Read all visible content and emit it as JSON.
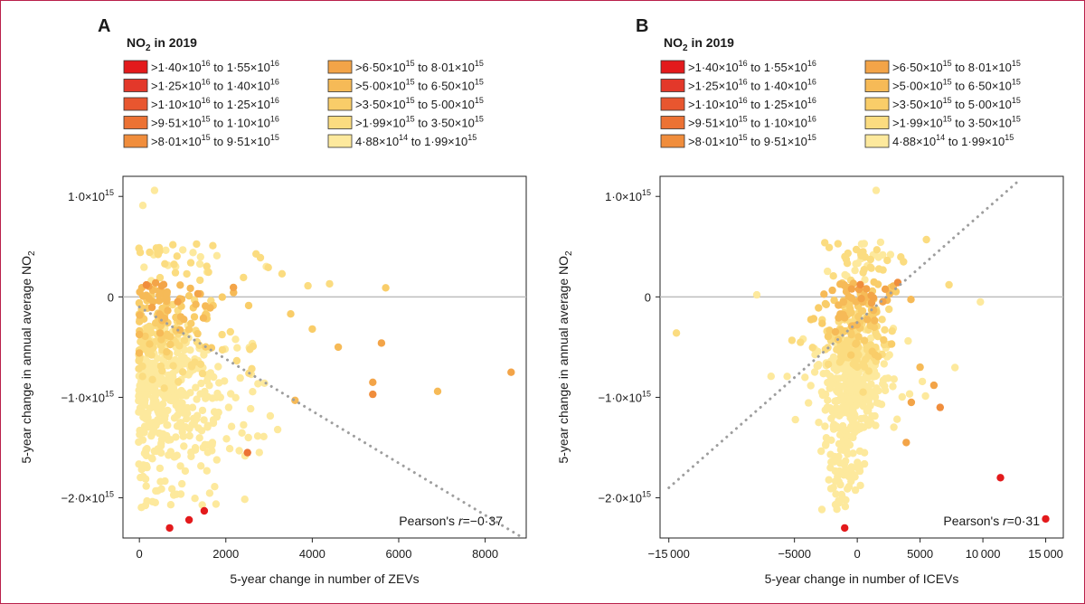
{
  "legend_title": "NO₂ in 2019",
  "legend_title_main": "NO",
  "legend_title_sub": "2",
  "legend_title_rest": " in 2019",
  "legend": [
    {
      "color": "#e31a1c",
      "label": ">1·40×10¹⁶ to 1·55×10¹⁶",
      "label_plain": ">1·40×10^16 to 1·55×10^16"
    },
    {
      "color": "#e3382a",
      "label": ">1·25×10¹⁶ to 1·40×10¹⁶"
    },
    {
      "color": "#e8562f",
      "label": ">1·10×10¹⁶ to 1·25×10¹⁶"
    },
    {
      "color": "#ec7234",
      "label": ">9·51×10¹⁵ to 1·10×10¹⁶"
    },
    {
      "color": "#f08d3c",
      "label": ">8·01×10¹⁵ to 9·51×10¹⁵"
    },
    {
      "color": "#f3a448",
      "label": ">6·50×10¹⁵ to 8·01×10¹⁵"
    },
    {
      "color": "#f6ba57",
      "label": ">5·00×10¹⁵ to 6·50×10¹⁵"
    },
    {
      "color": "#f9cd69",
      "label": ">3·50×10¹⁵ to 5·00×10¹⁵"
    },
    {
      "color": "#fbdc80",
      "label": ">1·99×10¹⁵ to 3·50×10¹⁵"
    },
    {
      "color": "#fde99d",
      "label": "4·88×10¹⁴ to 1·99×10¹⁵"
    }
  ],
  "chart_data": [
    {
      "panel": "A",
      "type": "scatter",
      "xlabel": "5-year change in number of ZEVs",
      "ylabel": "5-year change in annual average NO₂",
      "ylabel_main": "5-year change in annual average NO",
      "ylabel_sub": "2",
      "xlim": [
        -380,
        8950
      ],
      "ylim": [
        -2400000000000000.0,
        1200000000000000.0
      ],
      "xticks": [
        0,
        2000,
        4000,
        6000,
        8000
      ],
      "xtick_labels": [
        "0",
        "2000",
        "4000",
        "6000",
        "8000"
      ],
      "yticks": [
        1000000000000000.0,
        0,
        -1000000000000000.0,
        -2000000000000000.0
      ],
      "ytick_labels": [
        {
          "mant": "1·0×10",
          "exp": "15"
        },
        {
          "mant": "0",
          "exp": ""
        },
        {
          "mant": "−1·0×10",
          "exp": "15"
        },
        {
          "mant": "−2·0×10",
          "exp": "15"
        }
      ],
      "zero_line": true,
      "trend": {
        "x0": 0,
        "y0": -100000000000000.0,
        "x1": 8800,
        "y1": -2380000000000000.0
      },
      "annotation": "Pearson's r=−0·37",
      "annotation_pre": "Pearson's ",
      "annotation_var": "r",
      "annotation_val": "=−0·37",
      "cluster": {
        "n": 620,
        "seed": 7,
        "xmax_typical": 2600
      },
      "points": [
        {
          "x": 80,
          "y": 910000000000000.0,
          "c": 9
        },
        {
          "x": 350,
          "y": 1060000000000000.0,
          "c": 9
        },
        {
          "x": 1700,
          "y": 510000000000000.0,
          "c": 8
        },
        {
          "x": 2800,
          "y": 390000000000000.0,
          "c": 8
        },
        {
          "x": 3300,
          "y": 230000000000000.0,
          "c": 8
        },
        {
          "x": 3900,
          "y": 110000000000000.0,
          "c": 8
        },
        {
          "x": 4400,
          "y": 130000000000000.0,
          "c": 8
        },
        {
          "x": 5700,
          "y": 90000000000000.0,
          "c": 7
        },
        {
          "x": 3500,
          "y": -170000000000000.0,
          "c": 7
        },
        {
          "x": 4000,
          "y": -320000000000000.0,
          "c": 7
        },
        {
          "x": 4600,
          "y": -500000000000000.0,
          "c": 6
        },
        {
          "x": 5600,
          "y": -460000000000000.0,
          "c": 5
        },
        {
          "x": 3600,
          "y": -1030000000000000.0,
          "c": 6
        },
        {
          "x": 5400,
          "y": -850000000000000.0,
          "c": 5
        },
        {
          "x": 5400,
          "y": -970000000000000.0,
          "c": 4
        },
        {
          "x": 6900,
          "y": -940000000000000.0,
          "c": 6
        },
        {
          "x": 8600,
          "y": -750000000000000.0,
          "c": 5
        },
        {
          "x": 700,
          "y": -2300000000000000.0,
          "c": 0
        },
        {
          "x": 1150,
          "y": -2220000000000000.0,
          "c": 0
        },
        {
          "x": 1500,
          "y": -2130000000000000.0,
          "c": 0
        },
        {
          "x": 2500,
          "y": -1550000000000000.0,
          "c": 3
        }
      ]
    },
    {
      "panel": "B",
      "type": "scatter",
      "xlabel": "5-year change in number of ICEVs",
      "ylabel": "5-year change in annual average NO₂",
      "ylabel_main": "5-year change in annual average NO",
      "ylabel_sub": "2",
      "xlim": [
        -15700,
        16400
      ],
      "ylim": [
        -2400000000000000.0,
        1200000000000000.0
      ],
      "xticks": [
        -15000,
        -5000,
        0,
        5000,
        10000,
        15000
      ],
      "xtick_labels": [
        "−15 000",
        "−5000",
        "0",
        "5000",
        "10 000",
        "15 000"
      ],
      "yticks": [
        1000000000000000.0,
        0,
        -1000000000000000.0,
        -2000000000000000.0
      ],
      "ytick_labels": [
        {
          "mant": "1·0×10",
          "exp": "15"
        },
        {
          "mant": "0",
          "exp": ""
        },
        {
          "mant": "−1·0×10",
          "exp": "15"
        },
        {
          "mant": "−2·0×10",
          "exp": "15"
        }
      ],
      "zero_line": true,
      "trend": {
        "x0": -15000,
        "y0": -1900000000000000.0,
        "x1": 12800,
        "y1": 1150000000000000.0
      },
      "annotation": "Pearson's r=0·31",
      "annotation_pre": "Pearson's ",
      "annotation_var": "r",
      "annotation_val": "=0·31",
      "cluster": {
        "n": 620,
        "seed": 11
      },
      "points": [
        {
          "x": -14400,
          "y": -360000000000000.0,
          "c": 8
        },
        {
          "x": -8000,
          "y": 20000000000000.0,
          "c": 9
        },
        {
          "x": 1500,
          "y": 1060000000000000.0,
          "c": 9
        },
        {
          "x": 5500,
          "y": 570000000000000.0,
          "c": 8
        },
        {
          "x": 7300,
          "y": 120000000000000.0,
          "c": 8
        },
        {
          "x": 9800,
          "y": -50000000000000.0,
          "c": 9
        },
        {
          "x": 5000,
          "y": -700000000000000.0,
          "c": 6
        },
        {
          "x": 6100,
          "y": -880000000000000.0,
          "c": 5
        },
        {
          "x": 4300,
          "y": -1050000000000000.0,
          "c": 5
        },
        {
          "x": 6600,
          "y": -1100000000000000.0,
          "c": 4
        },
        {
          "x": 3900,
          "y": -1450000000000000.0,
          "c": 5
        },
        {
          "x": 11400,
          "y": -1800000000000000.0,
          "c": 0
        },
        {
          "x": 15000,
          "y": -2210000000000000.0,
          "c": 0
        },
        {
          "x": -1000,
          "y": -2300000000000000.0,
          "c": 0
        }
      ]
    }
  ]
}
